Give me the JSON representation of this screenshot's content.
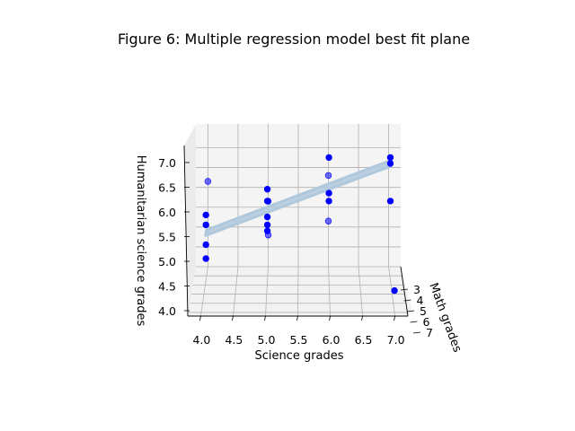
{
  "chart_data": {
    "type": "scatter",
    "projection": "3d",
    "title": "Figure 6: Multiple regression model best fit plane",
    "xlabel": "Science grades",
    "ylabel": "Math grades",
    "zlabel": "Humanitarian science grades",
    "xticks": [
      "4.0",
      "4.5",
      "5.0",
      "5.5",
      "6.0",
      "6.5",
      "7.0"
    ],
    "yticks": [
      "3",
      "4",
      "5",
      "6",
      "7"
    ],
    "zticks": [
      "4.0",
      "4.5",
      "5.0",
      "5.5",
      "6.0",
      "6.5",
      "7.0"
    ],
    "xlim": [
      3.8,
      7.2
    ],
    "ylim": [
      2,
      7.4
    ],
    "zlim": [
      4.0,
      7.6
    ],
    "grid": true,
    "point_color": "#0000ff",
    "plane_color": "#b0c8dc",
    "points": [
      {
        "x": 4.0,
        "y": 3.5,
        "z": 4.55
      },
      {
        "x": 4.0,
        "y": 3.5,
        "z": 4.9
      },
      {
        "x": 4.0,
        "y": 3.5,
        "z": 5.4
      },
      {
        "x": 4.0,
        "y": 3.5,
        "z": 5.65
      },
      {
        "x": 4.0,
        "y": 2.0,
        "z": 6.15
      },
      {
        "x": 5.0,
        "y": 3.5,
        "z": 5.25
      },
      {
        "x": 5.0,
        "y": 3.5,
        "z": 5.4
      },
      {
        "x": 5.0,
        "y": 3.5,
        "z": 5.6
      },
      {
        "x": 5.0,
        "y": 3.5,
        "z": 6.0
      },
      {
        "x": 5.0,
        "y": 3.5,
        "z": 6.3
      },
      {
        "x": 5.0,
        "y": 2.0,
        "z": 5.65
      },
      {
        "x": 5.0,
        "y": 2.0,
        "z": 4.8
      },
      {
        "x": 6.0,
        "y": 3.5,
        "z": 6.0
      },
      {
        "x": 6.0,
        "y": 3.5,
        "z": 6.2
      },
      {
        "x": 6.0,
        "y": 3.5,
        "z": 7.1
      },
      {
        "x": 6.0,
        "y": 2.0,
        "z": 6.3
      },
      {
        "x": 6.0,
        "y": 2.0,
        "z": 5.15
      },
      {
        "x": 7.0,
        "y": 3.5,
        "z": 6.0
      },
      {
        "x": 7.0,
        "y": 3.5,
        "z": 6.95
      },
      {
        "x": 7.0,
        "y": 3.5,
        "z": 7.1
      },
      {
        "x": 7.0,
        "y": 7.0,
        "z": 4.55
      }
    ],
    "plane": {
      "description_values": {
        "z_at_xmin": 5.2,
        "z_at_xmax": 6.95
      }
    }
  }
}
